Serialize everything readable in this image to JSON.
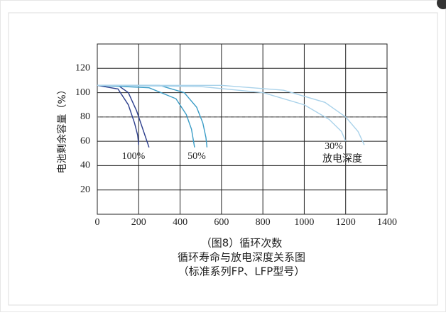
{
  "chart_data": {
    "type": "line",
    "y_label": "电池剩余容量（%）",
    "caption": [
      "（图8）循环次数",
      "循环寿命与放电深度关系图",
      "（标准系列FP、LFP型号）"
    ],
    "xlim": [
      0,
      1400
    ],
    "xticks": [
      0,
      200,
      400,
      600,
      800,
      1000,
      1200,
      1400
    ],
    "ylim": [
      0,
      140
    ],
    "yticks": [
      20,
      40,
      60,
      80,
      100,
      120
    ],
    "grid": true,
    "reference_line": 80,
    "annotation": "放电深度",
    "series": [
      {
        "name": "100%",
        "color": "#2b3d8c",
        "x": [
          0,
          100,
          150,
          190,
          220,
          240,
          250
        ],
        "values": [
          106,
          106,
          100,
          85,
          70,
          60,
          55
        ],
        "inner_x": [
          0,
          100,
          150,
          180,
          195,
          200
        ],
        "inner_values": [
          106,
          103,
          90,
          75,
          65,
          57
        ]
      },
      {
        "name": "50%",
        "color": "#3a9cc6",
        "x": [
          0,
          300,
          420,
          480,
          510,
          525,
          530
        ],
        "values": [
          106,
          106,
          100,
          88,
          75,
          63,
          55
        ],
        "inner_x": [
          0,
          250,
          380,
          430,
          455,
          465,
          470
        ],
        "inner_values": [
          106,
          104,
          95,
          82,
          70,
          60,
          55
        ]
      },
      {
        "name": "30%",
        "color": "#a9d2ea",
        "x": [
          0,
          600,
          900,
          1100,
          1200,
          1260,
          1290
        ],
        "values": [
          106,
          106,
          102,
          92,
          80,
          68,
          57
        ],
        "inner_x": [
          0,
          500,
          800,
          1000,
          1120,
          1180,
          1200
        ],
        "inner_values": [
          106,
          105,
          100,
          90,
          78,
          68,
          60
        ]
      }
    ]
  }
}
